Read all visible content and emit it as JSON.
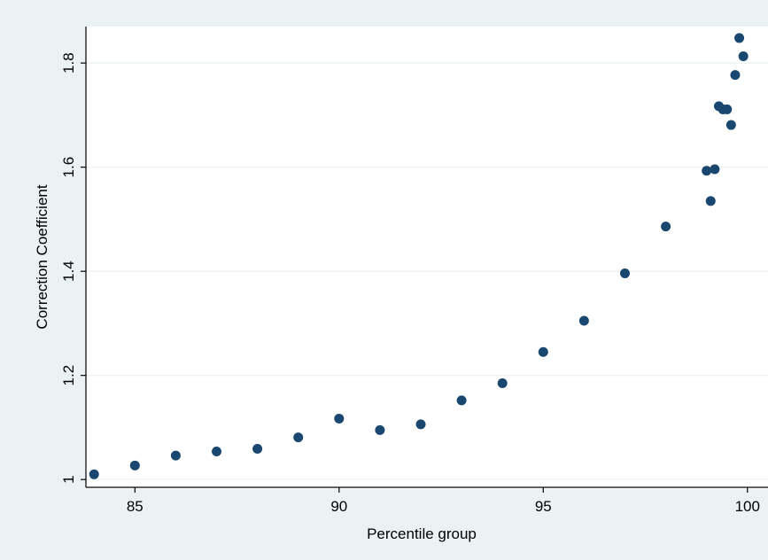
{
  "chart_data": {
    "type": "scatter",
    "xlabel": "Percentile group",
    "ylabel": "Correction Coefficient",
    "xlim": [
      83.8,
      100.2
    ],
    "ylim": [
      0.985,
      1.87
    ],
    "x_ticks": [
      85,
      90,
      95,
      100
    ],
    "x_tick_labels": [
      "85",
      "90",
      "95",
      "100"
    ],
    "y_ticks": [
      1.0,
      1.2,
      1.4,
      1.6,
      1.8
    ],
    "y_tick_labels": [
      "1",
      "1.2",
      "1.4",
      "1.6",
      "1.8"
    ],
    "grid": true,
    "legend": "none",
    "points": [
      {
        "x": 84,
        "y": 1.01
      },
      {
        "x": 85,
        "y": 1.027
      },
      {
        "x": 86,
        "y": 1.046
      },
      {
        "x": 87,
        "y": 1.054
      },
      {
        "x": 88,
        "y": 1.059
      },
      {
        "x": 89,
        "y": 1.081
      },
      {
        "x": 90,
        "y": 1.117
      },
      {
        "x": 91,
        "y": 1.095
      },
      {
        "x": 92,
        "y": 1.106
      },
      {
        "x": 93,
        "y": 1.152
      },
      {
        "x": 94,
        "y": 1.185
      },
      {
        "x": 95,
        "y": 1.245
      },
      {
        "x": 96,
        "y": 1.305
      },
      {
        "x": 97,
        "y": 1.396
      },
      {
        "x": 98,
        "y": 1.486
      },
      {
        "x": 99,
        "y": 1.593
      },
      {
        "x": 99.1,
        "y": 1.535
      },
      {
        "x": 99.2,
        "y": 1.596
      },
      {
        "x": 99.3,
        "y": 1.717
      },
      {
        "x": 99.4,
        "y": 1.711
      },
      {
        "x": 99.5,
        "y": 1.711
      },
      {
        "x": 99.6,
        "y": 1.681
      },
      {
        "x": 99.7,
        "y": 1.777
      },
      {
        "x": 99.8,
        "y": 1.848
      },
      {
        "x": 99.9,
        "y": 1.813
      }
    ],
    "colors": {
      "outer_background": "#eaf2f3",
      "plot_background": "#ffffff",
      "gridline": "#eaf2f3",
      "marker": "#1a476f",
      "axis": "#000000"
    }
  }
}
